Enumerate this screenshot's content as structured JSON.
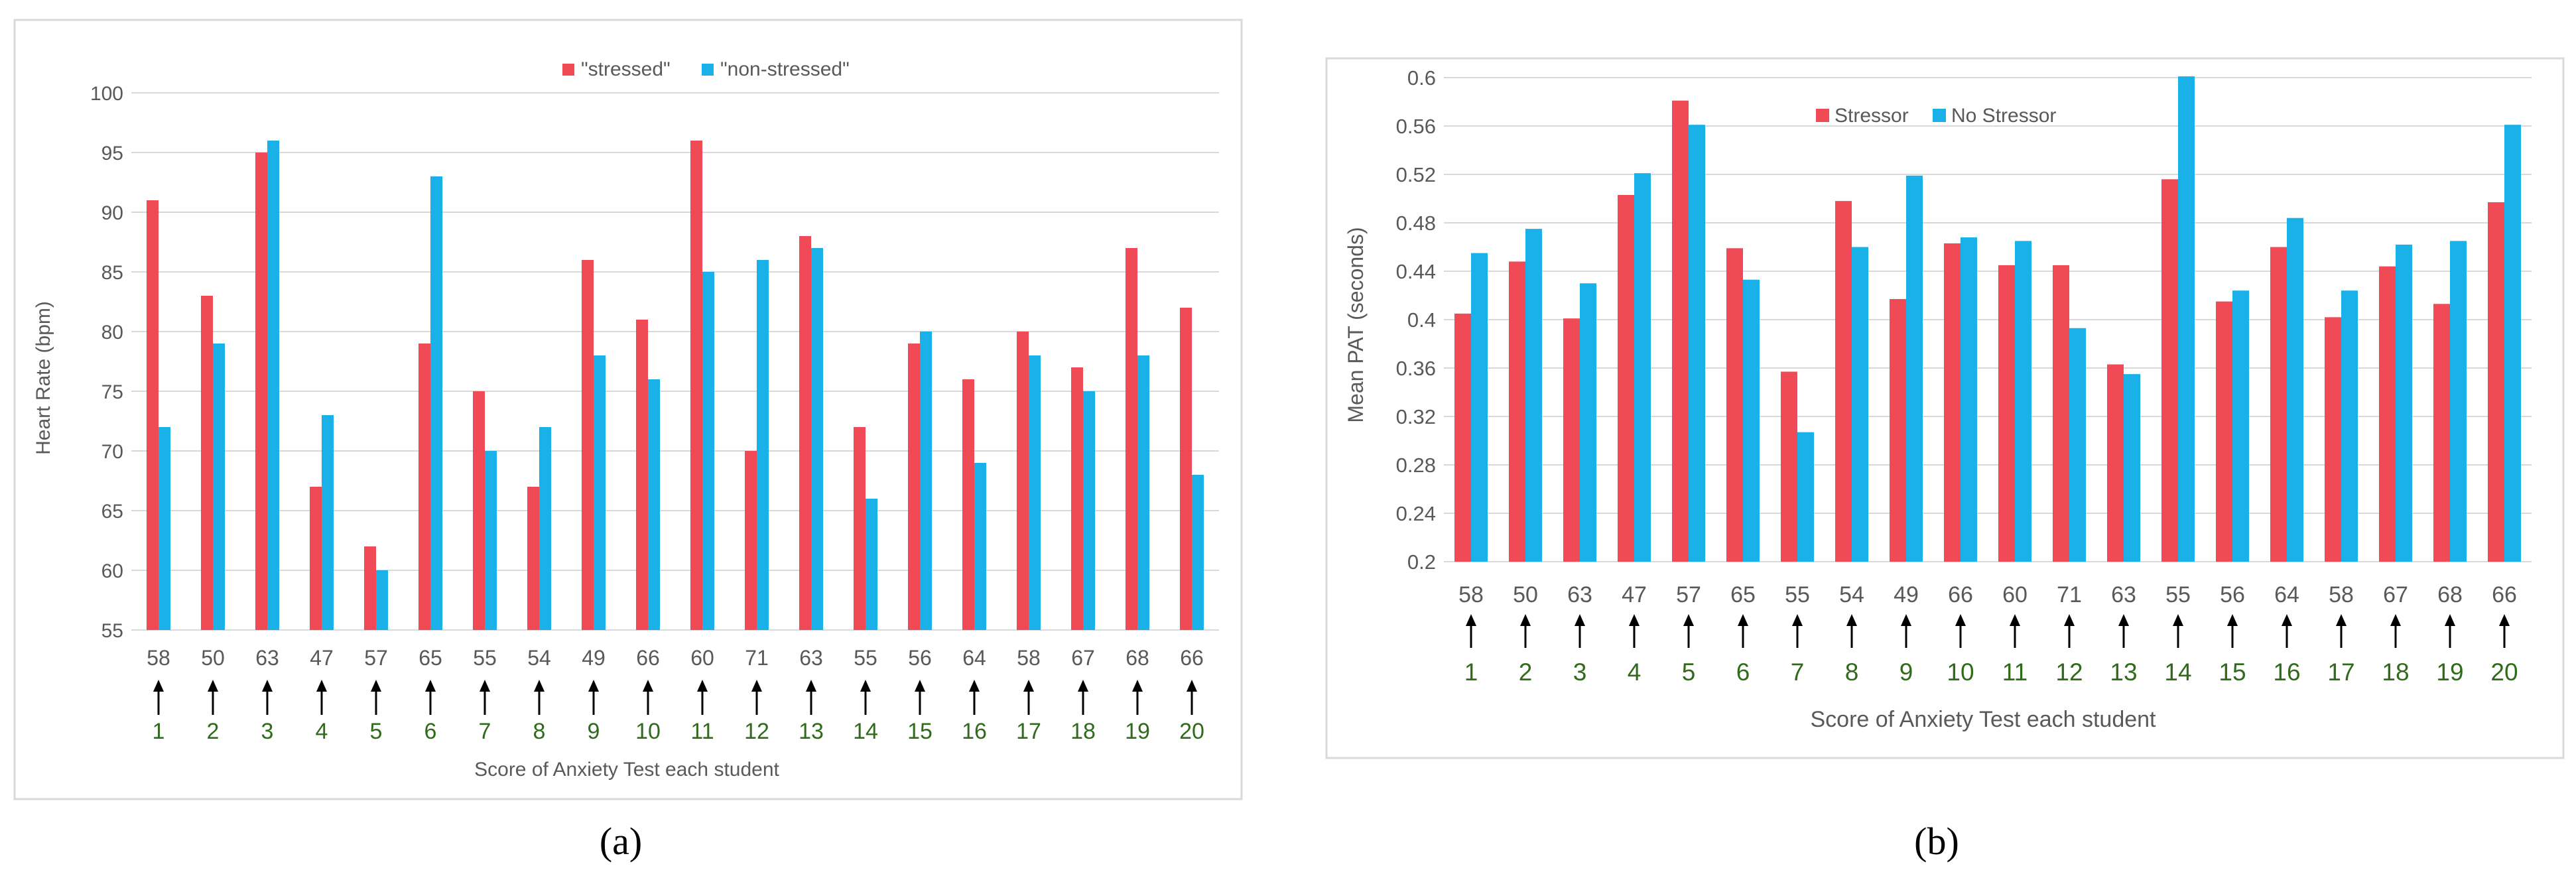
{
  "colors": {
    "series1": "#ef4a55",
    "series2": "#1ab0e8",
    "gridline": "#d9d9d9",
    "axis_text": "#595959",
    "student_number": "#2f6b1a",
    "arrow": "#000000",
    "frame": "#d9d9d9"
  },
  "chart_data": [
    {
      "type": "bar",
      "panel_label": "(a)",
      "title": "",
      "ylabel": "Heart Rate (bpm)",
      "xlabel": "Score of Anxiety Test  each student",
      "ylim": [
        55,
        100
      ],
      "yticks": [
        "55",
        "60",
        "65",
        "70",
        "75",
        "80",
        "85",
        "90",
        "95",
        "100"
      ],
      "grid": true,
      "legend_position": "top-center",
      "categories": [
        "58",
        "50",
        "63",
        "47",
        "57",
        "65",
        "55",
        "54",
        "49",
        "66",
        "60",
        "71",
        "63",
        "55",
        "56",
        "64",
        "58",
        "67",
        "68",
        "66"
      ],
      "students": [
        "1",
        "2",
        "3",
        "4",
        "5",
        "6",
        "7",
        "8",
        "9",
        "10",
        "11",
        "12",
        "13",
        "14",
        "15",
        "16",
        "17",
        "18",
        "19",
        "20"
      ],
      "series": [
        {
          "name": "\"stressed\"",
          "values": [
            91,
            83,
            95,
            67,
            62,
            79,
            75,
            67,
            86,
            81,
            96,
            70,
            88,
            72,
            79,
            76,
            80,
            77,
            87,
            82
          ]
        },
        {
          "name": "\"non-stressed\"",
          "values": [
            72,
            79,
            96,
            73,
            60,
            93,
            70,
            72,
            78,
            76,
            85,
            86,
            87,
            66,
            80,
            69,
            78,
            75,
            78,
            68
          ]
        }
      ]
    },
    {
      "type": "bar",
      "panel_label": "(b)",
      "title": "",
      "ylabel": "Mean PAT (seconds)",
      "xlabel": "Score of Anxiety Test  each student",
      "ylim": [
        0.2,
        0.6
      ],
      "yticks": [
        "0.2",
        "0.24",
        "0.28",
        "0.32",
        "0.36",
        "0.4",
        "0.44",
        "0.48",
        "0.52",
        "0.56",
        "0.6"
      ],
      "grid": true,
      "legend_position": "top-center",
      "categories": [
        "58",
        "50",
        "63",
        "47",
        "57",
        "65",
        "55",
        "54",
        "49",
        "66",
        "60",
        "71",
        "63",
        "55",
        "56",
        "64",
        "58",
        "67",
        "68",
        "66"
      ],
      "students": [
        "1",
        "2",
        "3",
        "4",
        "5",
        "6",
        "7",
        "8",
        "9",
        "10",
        "11",
        "12",
        "13",
        "14",
        "15",
        "16",
        "17",
        "18",
        "19",
        "20"
      ],
      "series": [
        {
          "name": "Stressor",
          "values": [
            0.405,
            0.448,
            0.401,
            0.503,
            0.581,
            0.459,
            0.357,
            0.498,
            0.417,
            0.463,
            0.445,
            0.445,
            0.363,
            0.516,
            0.415,
            0.46,
            0.402,
            0.444,
            0.413,
            0.497
          ]
        },
        {
          "name": "No Stressor",
          "values": [
            0.455,
            0.475,
            0.43,
            0.521,
            0.561,
            0.433,
            0.307,
            0.46,
            0.519,
            0.468,
            0.465,
            0.393,
            0.355,
            0.601,
            0.424,
            0.484,
            0.424,
            0.462,
            0.465,
            0.561
          ]
        }
      ]
    }
  ]
}
